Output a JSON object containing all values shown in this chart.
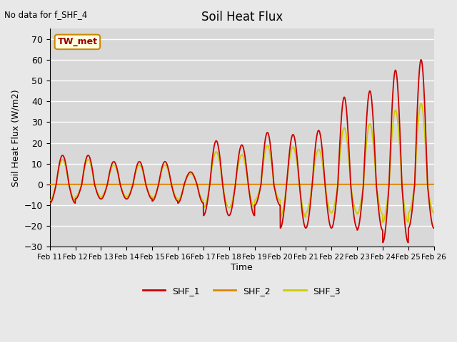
{
  "title": "Soil Heat Flux",
  "ylabel": "Soil Heat Flux (W/m2)",
  "xlabel": "Time",
  "annotation": "No data for f_SHF_4",
  "legend_label": "TW_met",
  "ylim": [
    -30,
    75
  ],
  "yticks": [
    -30,
    -20,
    -10,
    0,
    10,
    20,
    30,
    40,
    50,
    60,
    70
  ],
  "plot_bg_color": "#d8d8d8",
  "fig_bg_color": "#e8e8e8",
  "line_colors": {
    "SHF_1": "#cc0000",
    "SHF_2": "#dd8800",
    "SHF_3": "#cccc00"
  },
  "legend_entries": [
    "SHF_1",
    "SHF_2",
    "SHF_3"
  ],
  "x_labels": [
    "Feb 11",
    "Feb 12",
    "Feb 13",
    "Feb 14",
    "Feb 15",
    "Feb 16",
    "Feb 17",
    "Feb 18",
    "Feb 19",
    "Feb 20",
    "Feb 21",
    "Feb 22",
    "Feb 23",
    "Feb 24",
    "Feb 25",
    "Feb 26"
  ],
  "num_days": 15,
  "figsize": [
    6.4,
    4.8
  ],
  "dpi": 100
}
